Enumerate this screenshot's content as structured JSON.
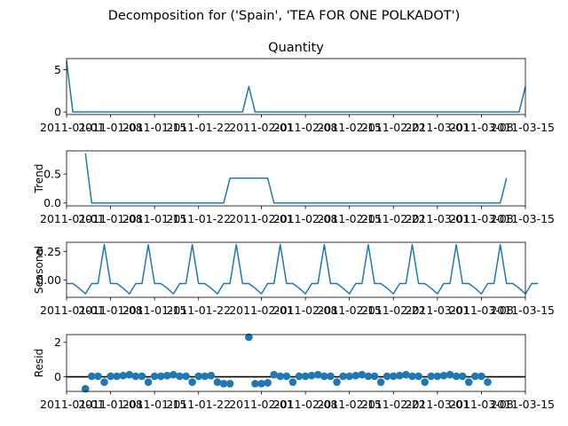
{
  "suptitle": "Decomposition for ('Spain', 'TEA FOR ONE POLKADOT')",
  "line_color": "#1f77b4",
  "chart_data": [
    {
      "type": "line",
      "title": "Quantity",
      "ylabel": "",
      "x_start": "2011-01-01",
      "x_end": "2011-03-15",
      "x_ticks": [
        "2011-01-01",
        "2011-01-08",
        "2011-01-15",
        "2011-01-22",
        "2011-02-01",
        "2011-02-08",
        "2011-02-15",
        "2011-02-22",
        "2011-03-01",
        "2011-03-08",
        "2011-03-15"
      ],
      "ylim": [
        -0.3,
        6.3
      ],
      "y_ticks": [
        0,
        5
      ],
      "y_tick_labels": [
        "0",
        "5"
      ],
      "values": [
        6,
        0,
        0,
        0,
        0,
        0,
        0,
        0,
        0,
        0,
        0,
        0,
        0,
        0,
        0,
        0,
        0,
        0,
        0,
        0,
        0,
        0,
        0,
        0,
        0,
        0,
        0,
        0,
        0,
        3,
        0,
        0,
        0,
        0,
        0,
        0,
        0,
        0,
        0,
        0,
        0,
        0,
        0,
        0,
        0,
        0,
        0,
        0,
        0,
        0,
        0,
        0,
        0,
        0,
        0,
        0,
        0,
        0,
        0,
        0,
        0,
        0,
        0,
        0,
        0,
        0,
        0,
        0,
        0,
        0,
        0,
        0,
        0,
        3
      ]
    },
    {
      "type": "line",
      "title": "",
      "ylabel": "Trend",
      "x_start": "2011-01-01",
      "x_end": "2011-03-15",
      "x_ticks": [
        "2011-01-01",
        "2011-01-08",
        "2011-01-15",
        "2011-01-22",
        "2011-02-01",
        "2011-02-08",
        "2011-02-15",
        "2011-02-22",
        "2011-03-01",
        "2011-03-08",
        "2011-03-15"
      ],
      "ylim": [
        -0.05,
        0.9
      ],
      "y_ticks": [
        0,
        0.5
      ],
      "y_tick_labels": [
        "0.0",
        "0.5"
      ],
      "values": [
        null,
        null,
        null,
        0.857,
        0,
        0,
        0,
        0,
        0,
        0,
        0,
        0,
        0,
        0,
        0,
        0,
        0,
        0,
        0,
        0,
        0,
        0,
        0,
        0,
        0,
        0,
        0.429,
        0.429,
        0.429,
        0.429,
        0.429,
        0.429,
        0.429,
        0,
        0,
        0,
        0,
        0,
        0,
        0,
        0,
        0,
        0,
        0,
        0,
        0,
        0,
        0,
        0,
        0,
        0,
        0,
        0,
        0,
        0,
        0,
        0,
        0,
        0,
        0,
        0,
        0,
        0,
        0,
        0,
        0,
        0,
        0,
        0,
        0,
        0.429,
        null,
        null,
        null
      ]
    },
    {
      "type": "line",
      "title": "",
      "ylabel": "Seasonal",
      "x_start": "2011-01-01",
      "x_end": "2011-03-15",
      "x_ticks": [
        "2011-01-01",
        "2011-01-08",
        "2011-01-15",
        "2011-01-22",
        "2011-02-01",
        "2011-02-08",
        "2011-02-15",
        "2011-02-22",
        "2011-03-01",
        "2011-03-08",
        "2011-03-15"
      ],
      "ylim": [
        -0.15,
        0.33
      ],
      "y_ticks": [
        0,
        0.25
      ],
      "y_tick_labels": [
        "0.00",
        "0.25"
      ],
      "values": [
        -0.03,
        -0.03,
        -0.07,
        -0.12,
        -0.03,
        -0.03,
        0.31,
        -0.03,
        -0.03,
        -0.07,
        -0.12,
        -0.03,
        -0.03,
        0.31,
        -0.03,
        -0.03,
        -0.07,
        -0.12,
        -0.03,
        -0.03,
        0.31,
        -0.03,
        -0.03,
        -0.07,
        -0.12,
        -0.03,
        -0.03,
        0.31,
        -0.03,
        -0.03,
        -0.07,
        -0.12,
        -0.03,
        -0.03,
        0.31,
        -0.03,
        -0.03,
        -0.07,
        -0.12,
        -0.03,
        -0.03,
        0.31,
        -0.03,
        -0.03,
        -0.07,
        -0.12,
        -0.03,
        -0.03,
        0.31,
        -0.03,
        -0.03,
        -0.07,
        -0.12,
        -0.03,
        -0.03,
        0.31,
        -0.03,
        -0.03,
        -0.07,
        -0.12,
        -0.03,
        -0.03,
        0.31,
        -0.03,
        -0.03,
        -0.07,
        -0.12,
        -0.03,
        -0.03,
        0.31,
        -0.03,
        -0.03,
        -0.07,
        -0.12,
        -0.03,
        -0.03
      ]
    },
    {
      "type": "scatter",
      "title": "",
      "ylabel": "Resid",
      "zero_line": true,
      "x_start": "2011-01-01",
      "x_end": "2011-03-15",
      "x_ticks": [
        "2011-01-01",
        "2011-01-08",
        "2011-01-15",
        "2011-01-22",
        "2011-02-01",
        "2011-02-08",
        "2011-02-15",
        "2011-02-22",
        "2011-03-01",
        "2011-03-08",
        "2011-03-15"
      ],
      "ylim": [
        -0.85,
        2.45
      ],
      "y_ticks": [
        0,
        2
      ],
      "y_tick_labels": [
        "0",
        "2"
      ],
      "points": [
        [
          3,
          -0.7
        ],
        [
          4,
          0.03
        ],
        [
          5,
          0.03
        ],
        [
          6,
          -0.31
        ],
        [
          7,
          0.03
        ],
        [
          8,
          0.03
        ],
        [
          9,
          0.07
        ],
        [
          10,
          0.12
        ],
        [
          11,
          0.03
        ],
        [
          12,
          0.03
        ],
        [
          13,
          -0.31
        ],
        [
          14,
          0.03
        ],
        [
          15,
          0.03
        ],
        [
          16,
          0.07
        ],
        [
          17,
          0.12
        ],
        [
          18,
          0.03
        ],
        [
          19,
          0.03
        ],
        [
          20,
          -0.31
        ],
        [
          21,
          0.03
        ],
        [
          22,
          0.03
        ],
        [
          23,
          0.07
        ],
        [
          24,
          -0.31
        ],
        [
          25,
          -0.4
        ],
        [
          26,
          -0.4
        ],
        [
          29,
          2.3
        ],
        [
          30,
          -0.4
        ],
        [
          31,
          -0.4
        ],
        [
          32,
          -0.35
        ],
        [
          33,
          0.12
        ],
        [
          34,
          0.03
        ],
        [
          35,
          0.03
        ],
        [
          36,
          -0.31
        ],
        [
          37,
          0.03
        ],
        [
          38,
          0.03
        ],
        [
          39,
          0.07
        ],
        [
          40,
          0.12
        ],
        [
          41,
          0.03
        ],
        [
          42,
          0.03
        ],
        [
          43,
          -0.31
        ],
        [
          44,
          0.03
        ],
        [
          45,
          0.03
        ],
        [
          46,
          0.07
        ],
        [
          47,
          0.12
        ],
        [
          48,
          0.03
        ],
        [
          49,
          0.03
        ],
        [
          50,
          -0.31
        ],
        [
          51,
          0.03
        ],
        [
          52,
          0.03
        ],
        [
          53,
          0.07
        ],
        [
          54,
          0.12
        ],
        [
          55,
          0.03
        ],
        [
          56,
          0.03
        ],
        [
          57,
          -0.31
        ],
        [
          58,
          0.03
        ],
        [
          59,
          0.03
        ],
        [
          60,
          0.07
        ],
        [
          61,
          0.12
        ],
        [
          62,
          0.03
        ],
        [
          63,
          0.03
        ],
        [
          64,
          -0.31
        ],
        [
          65,
          0.03
        ],
        [
          66,
          0.03
        ],
        [
          67,
          -0.31
        ]
      ]
    }
  ]
}
